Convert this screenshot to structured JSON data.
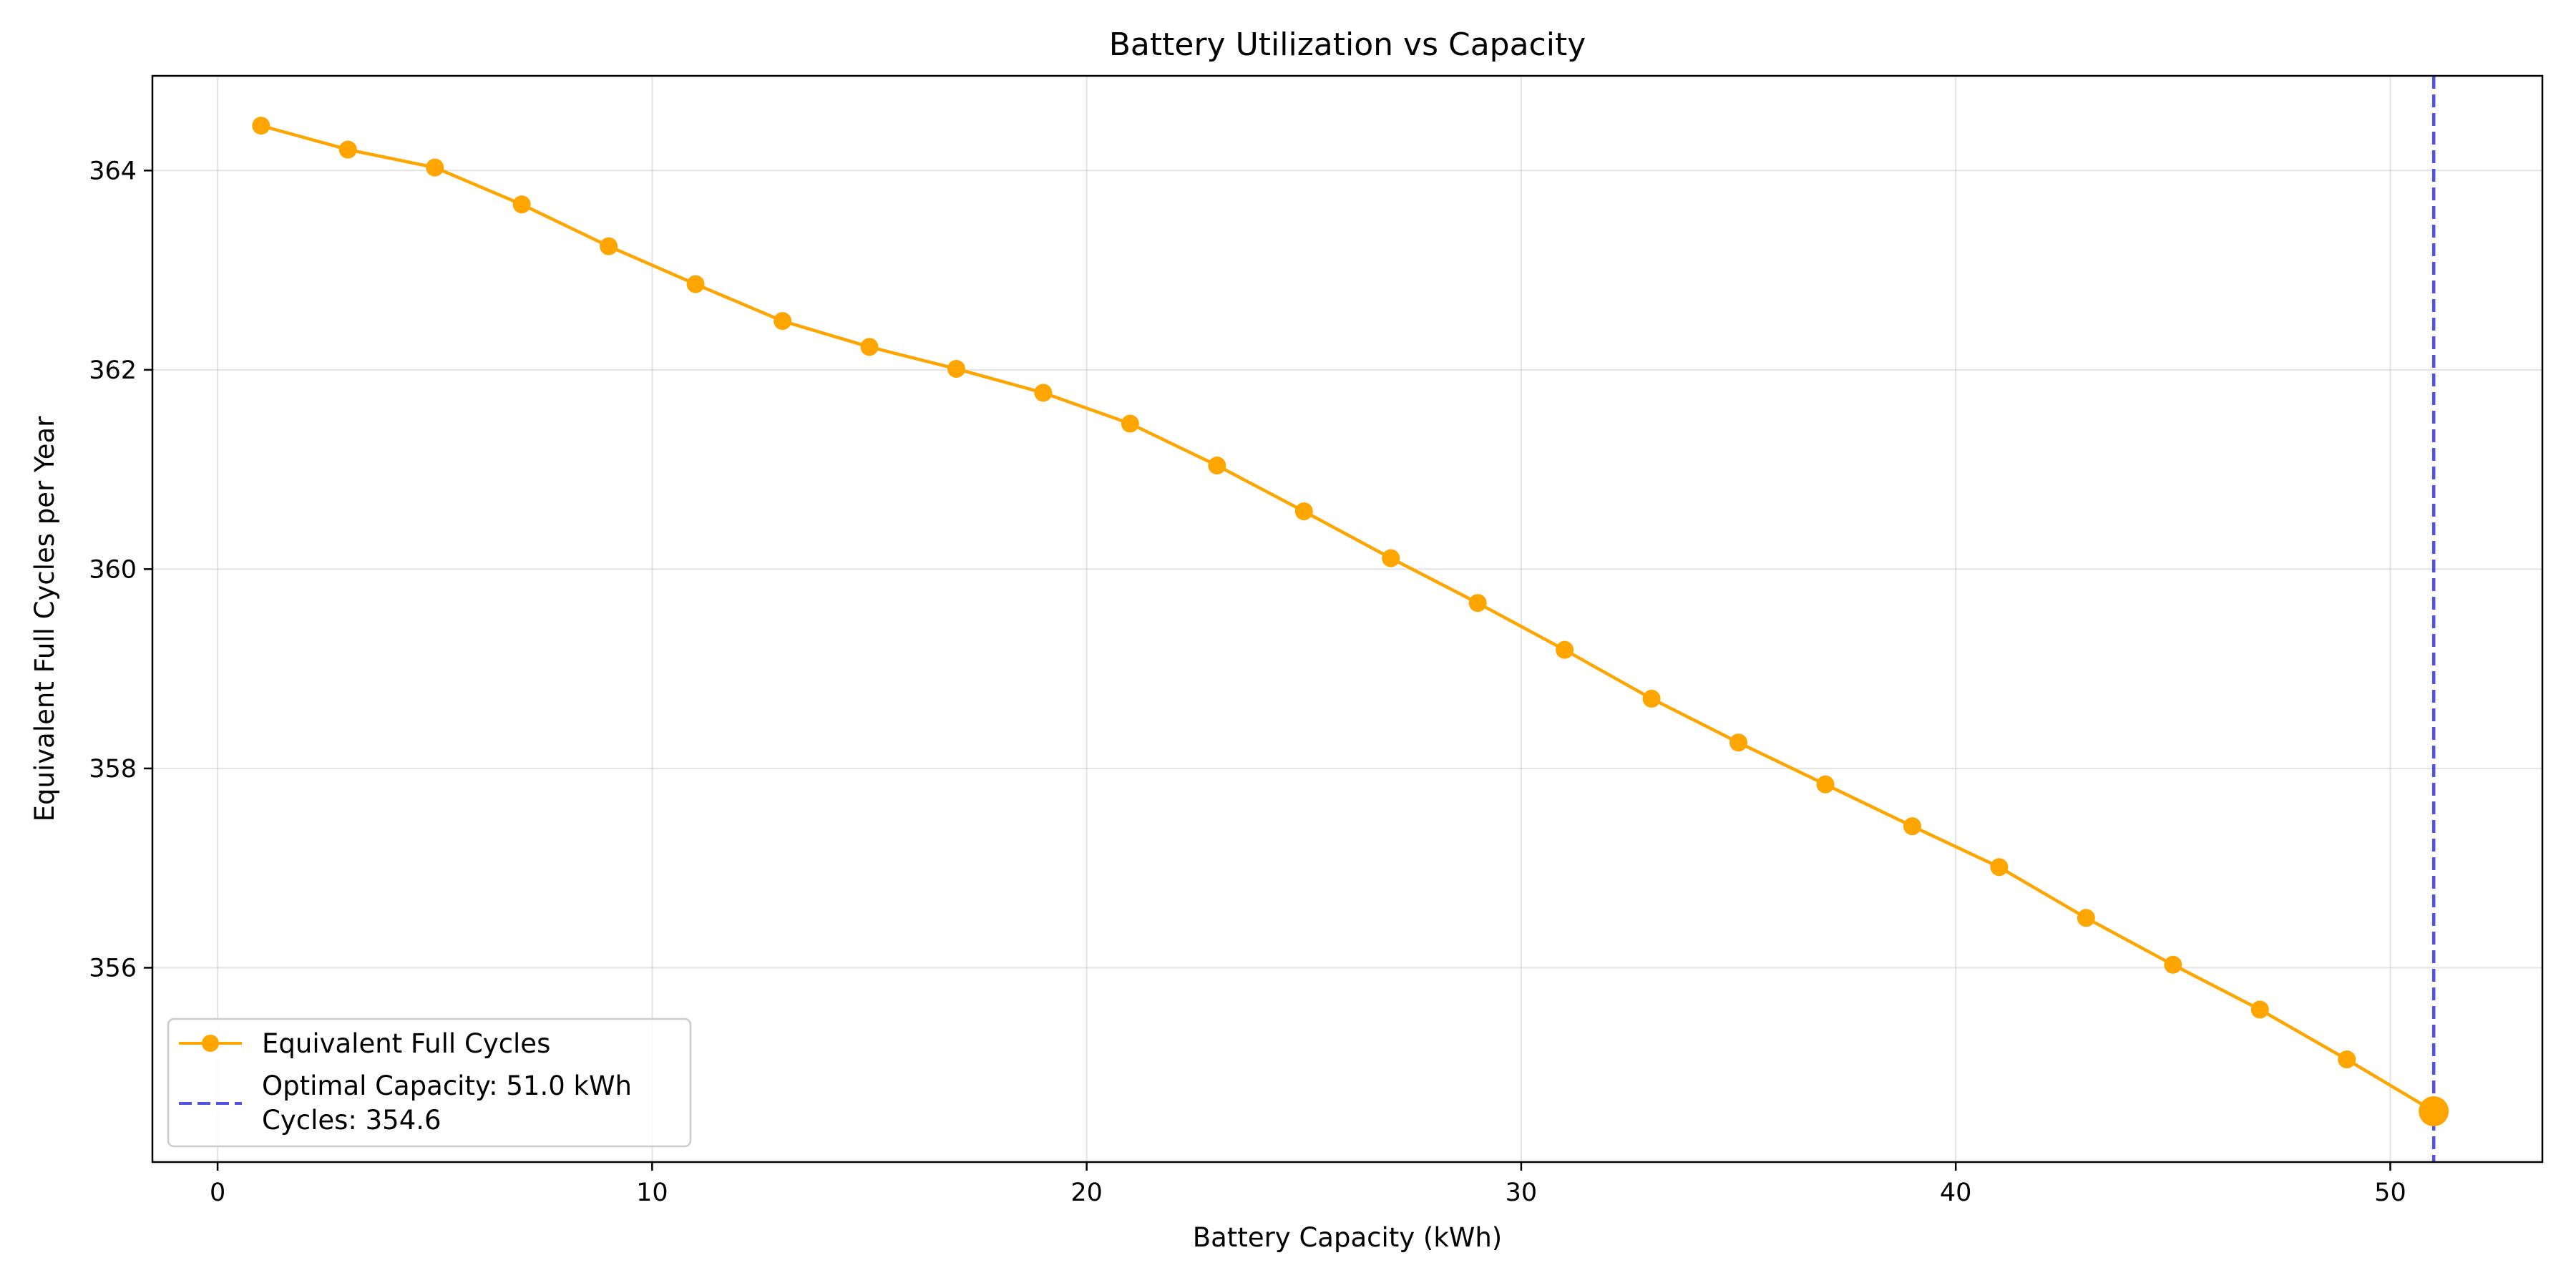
{
  "chart_data": {
    "type": "line",
    "title": "Battery Utilization vs Capacity",
    "xlabel": "Battery Capacity (kWh)",
    "ylabel": "Equivalent Full Cycles per Year",
    "xlim": [
      -1.5,
      53.5
    ],
    "ylim": [
      354.05,
      364.95
    ],
    "xticks": [
      0,
      10,
      20,
      30,
      40,
      50
    ],
    "yticks": [
      356,
      358,
      360,
      362,
      364
    ],
    "grid": true,
    "legend_position": "bottom-left",
    "series": [
      {
        "name": "Equivalent Full Cycles",
        "color": "#FFA500",
        "marker": "circle",
        "x": [
          1,
          3,
          5,
          7,
          9,
          11,
          13,
          15,
          17,
          19,
          21,
          23,
          25,
          27,
          29,
          31,
          33,
          35,
          37,
          39,
          41,
          43,
          45,
          47,
          49,
          51
        ],
        "y": [
          364.45,
          364.21,
          364.03,
          363.66,
          363.24,
          362.86,
          362.49,
          362.23,
          362.01,
          361.77,
          361.46,
          361.04,
          360.58,
          360.11,
          359.66,
          359.19,
          358.7,
          358.26,
          357.84,
          357.42,
          357.01,
          356.5,
          356.03,
          355.58,
          355.08,
          354.56
        ]
      }
    ],
    "reference_line": {
      "orientation": "vertical",
      "x": 51.0,
      "color": "#3333DD",
      "style": "dashed",
      "legend_line1": "Optimal Capacity: 51.0 kWh",
      "legend_line2": "Cycles: 354.6"
    },
    "highlight_point": {
      "x": 51,
      "y": 354.56,
      "color": "#FFA500"
    }
  }
}
